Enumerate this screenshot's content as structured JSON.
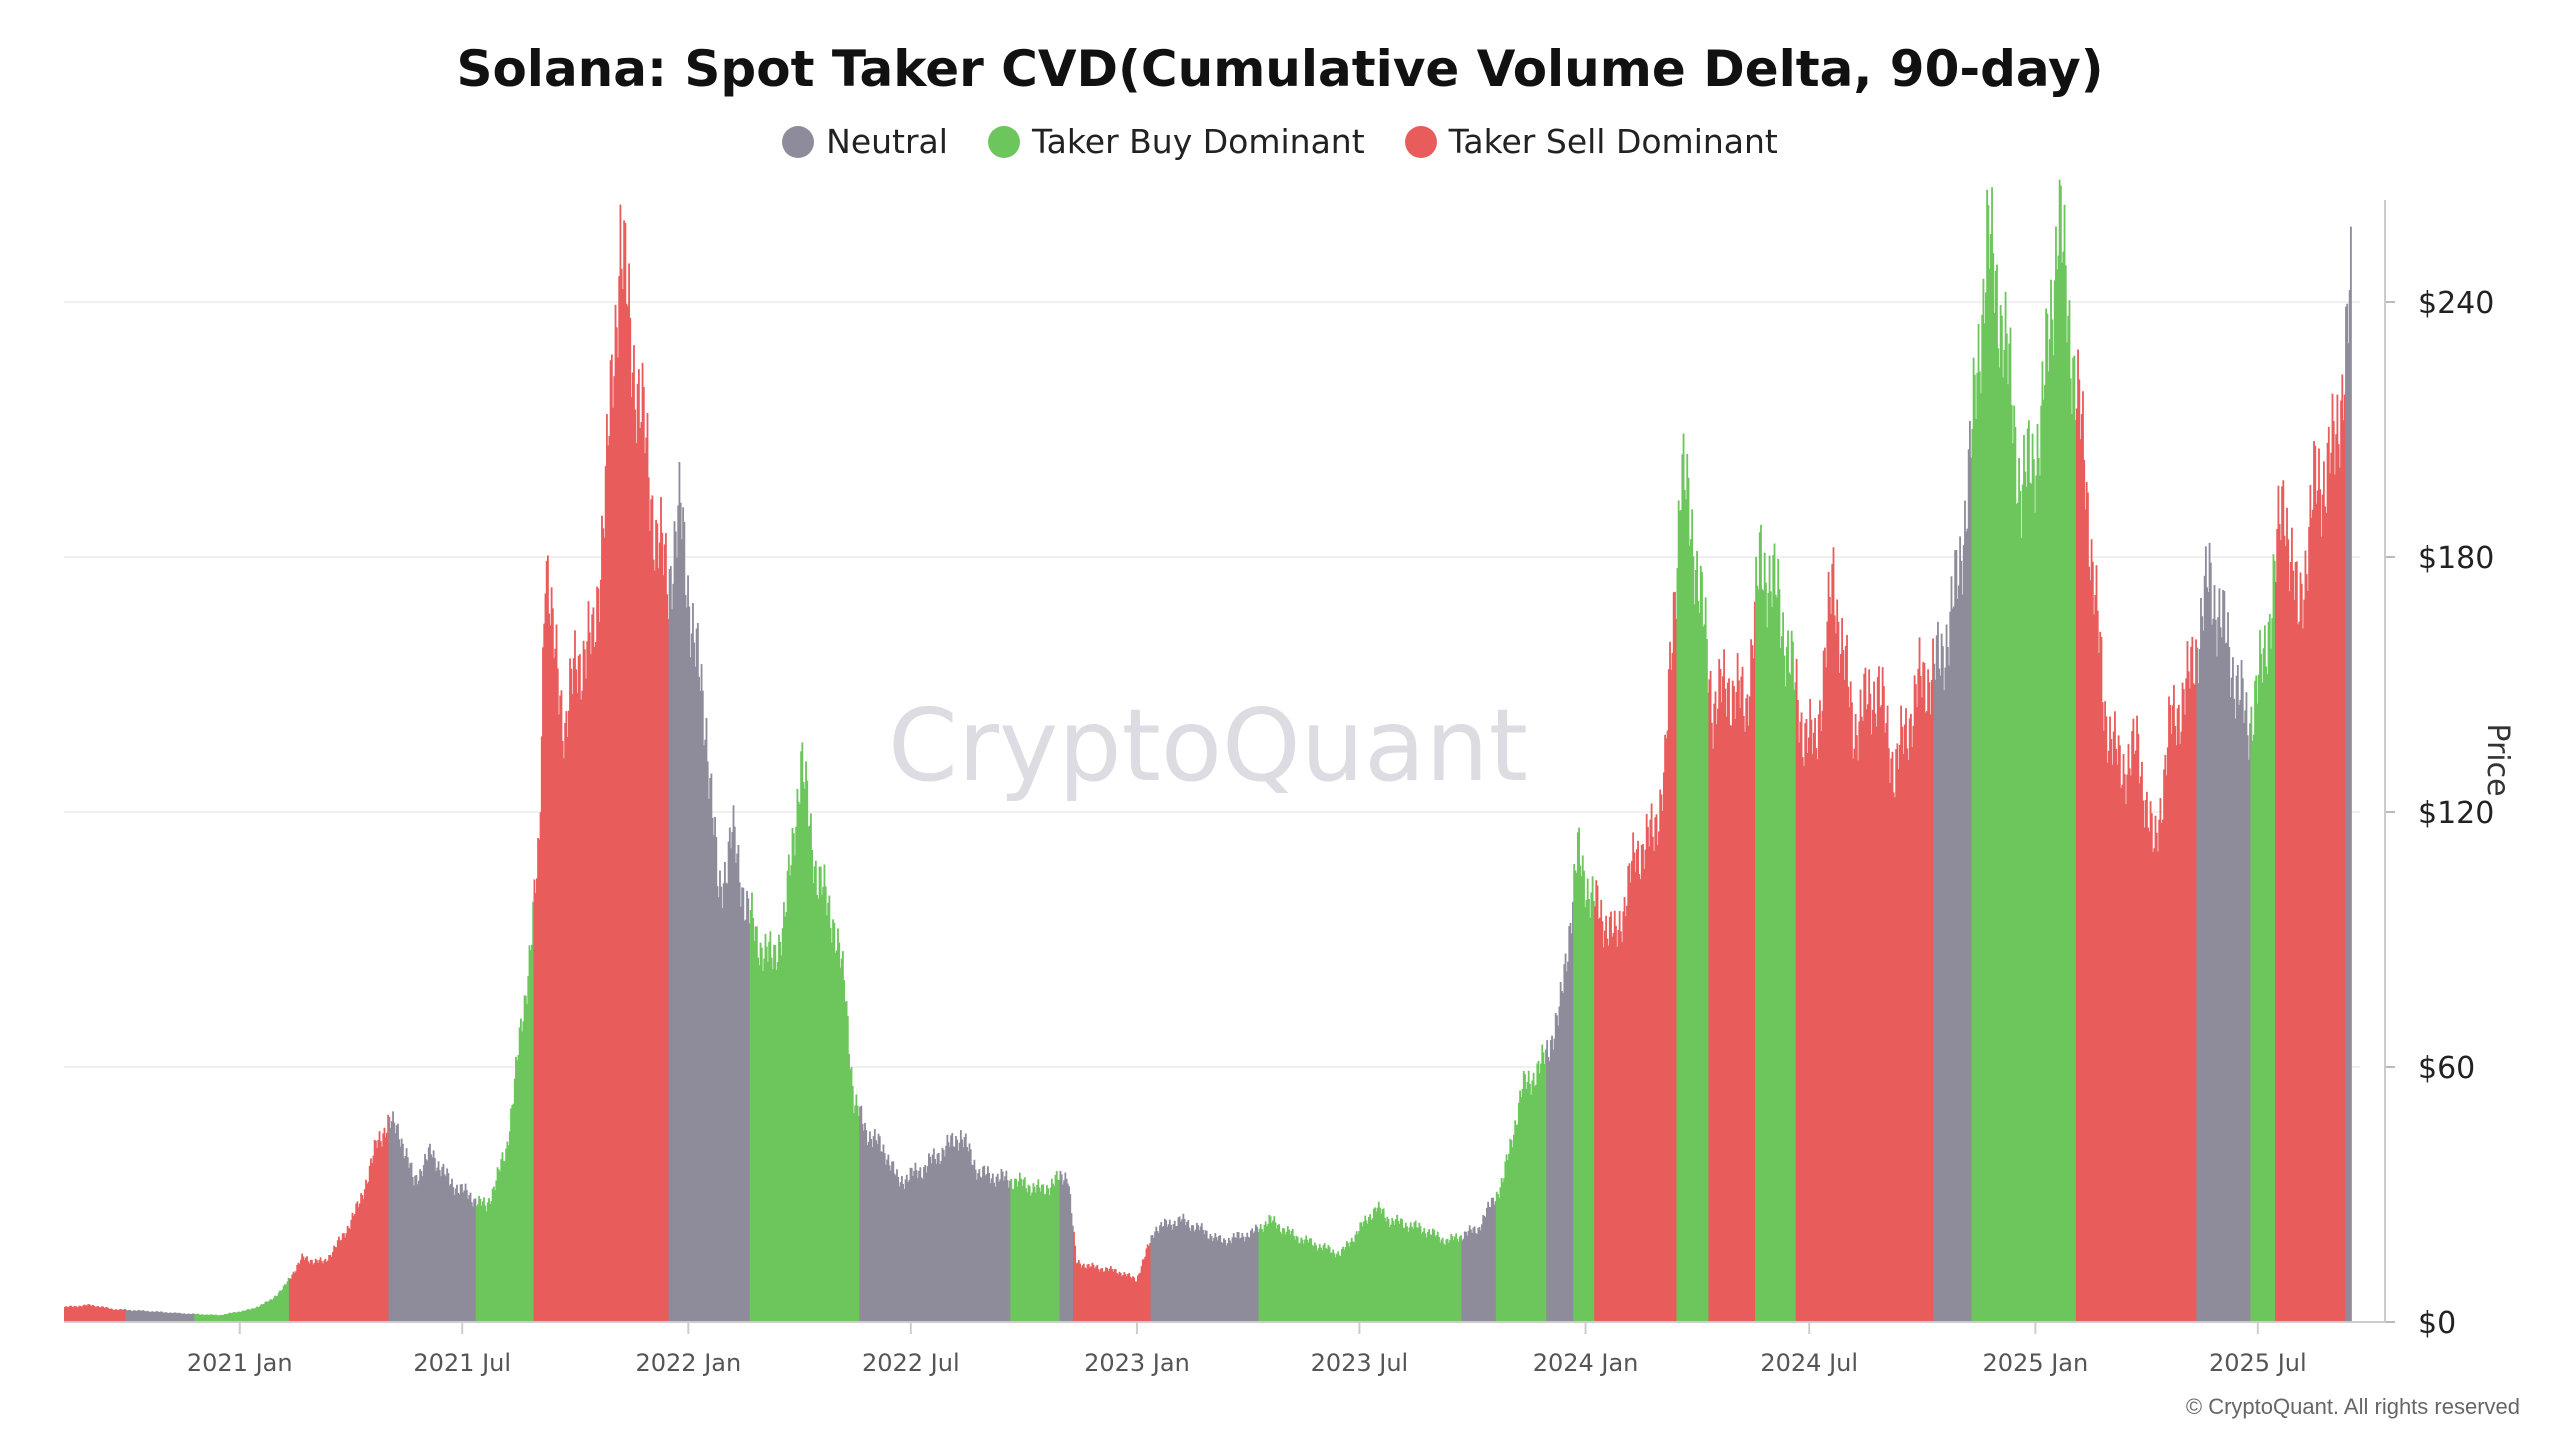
{
  "chart_data": {
    "type": "bar",
    "title": "Solana: Spot Taker CVD(Cumulative Volume Delta, 90-day)",
    "ylabel": "Price",
    "ylim": [
      0,
      264
    ],
    "yticks": [
      0,
      60,
      120,
      180,
      240
    ],
    "ytick_labels": [
      "$0",
      "$60",
      "$120",
      "$180",
      "$240"
    ],
    "x_start": "2020-08-11",
    "x_end": "2025-09-14",
    "xticks": [
      "2021-01-01",
      "2021-07-01",
      "2022-01-01",
      "2022-07-01",
      "2023-01-01",
      "2023-07-01",
      "2024-01-01",
      "2024-07-01",
      "2025-01-01",
      "2025-07-01"
    ],
    "xtick_labels": [
      "2021 Jan",
      "2021 Jul",
      "2022 Jan",
      "2022 Jul",
      "2023 Jan",
      "2023 Jul",
      "2024 Jan",
      "2024 Jul",
      "2025 Jan",
      "2025 Jul"
    ],
    "grid": true,
    "legend_position": "top-center",
    "series": [
      {
        "name": "Neutral",
        "color": "#8e8c9b"
      },
      {
        "name": "Taker Buy Dominant",
        "color": "#6cc65c"
      },
      {
        "name": "Taker Sell Dominant",
        "color": "#e85c5c"
      }
    ],
    "price_points": [
      [
        "2020-08-11",
        3.5
      ],
      [
        "2020-09-01",
        4
      ],
      [
        "2020-09-20",
        3
      ],
      [
        "2020-10-15",
        2.6
      ],
      [
        "2020-11-15",
        2
      ],
      [
        "2020-12-15",
        1.6
      ],
      [
        "2021-01-10",
        3
      ],
      [
        "2021-01-25",
        5
      ],
      [
        "2021-02-05",
        8
      ],
      [
        "2021-02-20",
        15
      ],
      [
        "2021-03-10",
        14
      ],
      [
        "2021-03-25",
        20
      ],
      [
        "2021-04-08",
        28
      ],
      [
        "2021-04-22",
        42
      ],
      [
        "2021-05-01",
        47
      ],
      [
        "2021-05-10",
        45
      ],
      [
        "2021-05-22",
        33
      ],
      [
        "2021-06-05",
        40
      ],
      [
        "2021-06-20",
        33
      ],
      [
        "2021-07-05",
        30
      ],
      [
        "2021-07-20",
        27
      ],
      [
        "2021-08-05",
        40
      ],
      [
        "2021-08-20",
        75
      ],
      [
        "2021-09-01",
        110
      ],
      [
        "2021-09-06",
        185
      ],
      [
        "2021-09-12",
        160
      ],
      [
        "2021-09-22",
        140
      ],
      [
        "2021-10-01",
        155
      ],
      [
        "2021-10-15",
        160
      ],
      [
        "2021-10-25",
        195
      ],
      [
        "2021-11-06",
        255
      ],
      [
        "2021-11-15",
        230
      ],
      [
        "2021-11-25",
        210
      ],
      [
        "2021-12-05",
        185
      ],
      [
        "2021-12-15",
        175
      ],
      [
        "2021-12-25",
        190
      ],
      [
        "2022-01-05",
        160
      ],
      [
        "2022-01-15",
        140
      ],
      [
        "2022-01-25",
        100
      ],
      [
        "2022-02-05",
        115
      ],
      [
        "2022-02-15",
        100
      ],
      [
        "2022-02-25",
        90
      ],
      [
        "2022-03-10",
        85
      ],
      [
        "2022-03-20",
        95
      ],
      [
        "2022-04-02",
        132
      ],
      [
        "2022-04-15",
        105
      ],
      [
        "2022-04-28",
        95
      ],
      [
        "2022-05-08",
        78
      ],
      [
        "2022-05-15",
        52
      ],
      [
        "2022-05-25",
        45
      ],
      [
        "2022-06-10",
        40
      ],
      [
        "2022-06-20",
        33
      ],
      [
        "2022-07-10",
        36
      ],
      [
        "2022-07-25",
        40
      ],
      [
        "2022-08-10",
        44
      ],
      [
        "2022-08-25",
        35
      ],
      [
        "2022-09-10",
        34
      ],
      [
        "2022-09-25",
        33
      ],
      [
        "2022-10-15",
        31
      ],
      [
        "2022-11-05",
        35
      ],
      [
        "2022-11-12",
        14
      ],
      [
        "2022-11-25",
        13
      ],
      [
        "2022-12-15",
        12
      ],
      [
        "2022-12-31",
        10
      ],
      [
        "2023-01-15",
        22
      ],
      [
        "2023-02-05",
        24
      ],
      [
        "2023-02-20",
        22
      ],
      [
        "2023-03-10",
        19
      ],
      [
        "2023-04-05",
        21
      ],
      [
        "2023-04-18",
        24
      ],
      [
        "2023-05-10",
        20
      ],
      [
        "2023-06-15",
        16
      ],
      [
        "2023-07-14",
        27
      ],
      [
        "2023-07-25",
        24
      ],
      [
        "2023-08-20",
        22
      ],
      [
        "2023-09-10",
        19
      ],
      [
        "2023-10-05",
        22
      ],
      [
        "2023-10-25",
        33
      ],
      [
        "2023-11-10",
        55
      ],
      [
        "2023-11-25",
        60
      ],
      [
        "2023-12-10",
        72
      ],
      [
        "2023-12-25",
        110
      ],
      [
        "2024-01-05",
        100
      ],
      [
        "2024-01-15",
        95
      ],
      [
        "2024-01-25",
        90
      ],
      [
        "2024-02-10",
        110
      ],
      [
        "2024-02-25",
        115
      ],
      [
        "2024-03-05",
        130
      ],
      [
        "2024-03-18",
        200
      ],
      [
        "2024-03-28",
        185
      ],
      [
        "2024-04-13",
        145
      ],
      [
        "2024-04-25",
        150
      ],
      [
        "2024-05-10",
        145
      ],
      [
        "2024-05-22",
        180
      ],
      [
        "2024-06-05",
        170
      ],
      [
        "2024-06-25",
        140
      ],
      [
        "2024-07-05",
        135
      ],
      [
        "2024-07-20",
        175
      ],
      [
        "2024-08-05",
        140
      ],
      [
        "2024-08-25",
        150
      ],
      [
        "2024-09-08",
        130
      ],
      [
        "2024-09-28",
        150
      ],
      [
        "2024-10-15",
        155
      ],
      [
        "2024-10-30",
        175
      ],
      [
        "2024-11-12",
        215
      ],
      [
        "2024-11-22",
        255
      ],
      [
        "2024-12-05",
        235
      ],
      [
        "2024-12-20",
        195
      ],
      [
        "2025-01-05",
        210
      ],
      [
        "2025-01-19",
        260
      ],
      [
        "2025-01-28",
        235
      ],
      [
        "2025-02-10",
        200
      ],
      [
        "2025-02-25",
        145
      ],
      [
        "2025-03-10",
        130
      ],
      [
        "2025-03-25",
        135
      ],
      [
        "2025-04-07",
        110
      ],
      [
        "2025-04-20",
        140
      ],
      [
        "2025-05-05",
        150
      ],
      [
        "2025-05-22",
        175
      ],
      [
        "2025-06-05",
        160
      ],
      [
        "2025-06-22",
        140
      ],
      [
        "2025-07-05",
        155
      ],
      [
        "2025-07-22",
        195
      ],
      [
        "2025-08-02",
        165
      ],
      [
        "2025-08-15",
        195
      ],
      [
        "2025-09-01",
        205
      ],
      [
        "2025-09-14",
        240
      ]
    ],
    "regimes": [
      [
        "2020-08-11",
        "2020-09-30",
        2
      ],
      [
        "2020-09-30",
        "2020-11-25",
        0
      ],
      [
        "2020-11-25",
        "2021-02-10",
        1
      ],
      [
        "2021-02-10",
        "2021-05-02",
        2
      ],
      [
        "2021-05-02",
        "2021-07-12",
        0
      ],
      [
        "2021-07-12",
        "2021-08-06",
        1
      ],
      [
        "2021-08-06",
        "2021-08-28",
        1
      ],
      [
        "2021-08-28",
        "2021-12-16",
        2
      ],
      [
        "2021-12-16",
        "2022-02-20",
        0
      ],
      [
        "2022-02-20",
        "2022-05-20",
        1
      ],
      [
        "2022-05-20",
        "2022-09-20",
        0
      ],
      [
        "2022-09-20",
        "2022-10-30",
        1
      ],
      [
        "2022-10-30",
        "2022-11-10",
        0
      ],
      [
        "2022-11-10",
        "2023-01-12",
        2
      ],
      [
        "2023-01-12",
        "2023-04-10",
        0
      ],
      [
        "2023-04-10",
        "2023-06-05",
        1
      ],
      [
        "2023-06-05",
        "2023-06-20",
        1
      ],
      [
        "2023-06-20",
        "2023-09-22",
        1
      ],
      [
        "2023-09-22",
        "2023-10-20",
        0
      ],
      [
        "2023-10-20",
        "2023-11-30",
        1
      ],
      [
        "2023-11-30",
        "2023-12-22",
        0
      ],
      [
        "2023-12-22",
        "2024-01-08",
        1
      ],
      [
        "2024-01-08",
        "2024-03-15",
        2
      ],
      [
        "2024-03-15",
        "2024-04-10",
        1
      ],
      [
        "2024-04-10",
        "2024-05-18",
        2
      ],
      [
        "2024-05-18",
        "2024-06-20",
        1
      ],
      [
        "2024-06-20",
        "2024-10-10",
        2
      ],
      [
        "2024-10-10",
        "2024-11-10",
        0
      ],
      [
        "2024-11-10",
        "2025-01-12",
        1
      ],
      [
        "2025-01-12",
        "2025-02-03",
        1
      ],
      [
        "2025-02-03",
        "2025-05-12",
        2
      ],
      [
        "2025-05-12",
        "2025-06-25",
        0
      ],
      [
        "2025-06-25",
        "2025-07-15",
        1
      ],
      [
        "2025-07-15",
        "2025-09-10",
        2
      ],
      [
        "2025-09-10",
        "2025-09-14",
        0
      ]
    ]
  },
  "watermark": "CryptoQuant",
  "copyright": "© CryptoQuant. All rights reserved"
}
